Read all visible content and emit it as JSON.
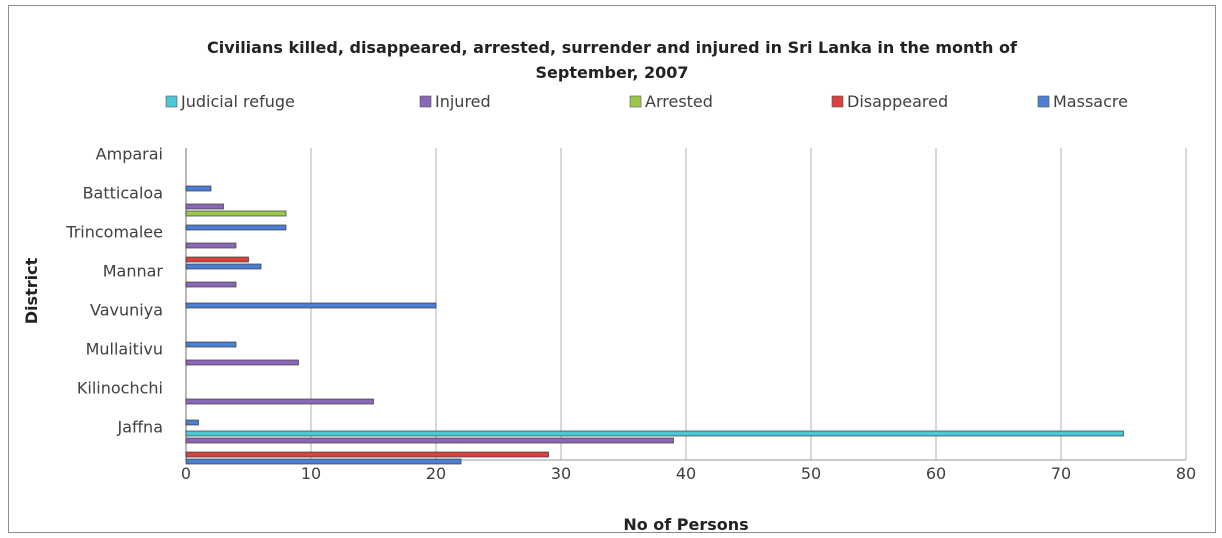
{
  "chart_data": {
    "type": "bar",
    "orientation": "horizontal",
    "title": "Civilians killed, disappeared, arrested, surrender and injured in  Sri Lanka in the month of September, 2007",
    "title_lines": [
      "Civilians killed, disappeared, arrested, surrender and injured in  Sri Lanka in the month of",
      "September, 2007"
    ],
    "xlabel": "No of Persons",
    "ylabel": "District",
    "xlim": [
      0,
      80
    ],
    "x_ticks": [
      "0",
      "10",
      "20",
      "30",
      "40",
      "50",
      "60",
      "70",
      "80"
    ],
    "grid": "vertical",
    "legend_position": "top",
    "categories": [
      "Amparai",
      "Batticaloa",
      "Trincomalee",
      "Mannar",
      "Vavuniya",
      "Mullaitivu",
      "Kilinochchi",
      "Jaffna"
    ],
    "legend": [
      {
        "name": "Judicial refuge",
        "color": "#4bc7d6"
      },
      {
        "name": "Injured",
        "color": "#8a68b8"
      },
      {
        "name": "Arrested",
        "color": "#9bc84c"
      },
      {
        "name": "Disappeared",
        "color": "#d9413f"
      },
      {
        "name": "Massacre",
        "color": "#4a7fd4"
      }
    ],
    "series": [
      {
        "name": "Massacre",
        "color": "#4a7fd4",
        "values": [
          2,
          8,
          6,
          20,
          4,
          0,
          1,
          22
        ]
      },
      {
        "name": "Disappeared",
        "color": "#d9413f",
        "values": [
          0,
          0,
          5,
          0,
          0,
          0,
          0,
          29
        ]
      },
      {
        "name": "Arrested",
        "color": "#9bc84c",
        "values": [
          0,
          8,
          0,
          0,
          0,
          0,
          0,
          0
        ]
      },
      {
        "name": "Injured",
        "color": "#8a68b8",
        "values": [
          0,
          3,
          4,
          4,
          0,
          9,
          15,
          39
        ]
      },
      {
        "name": "Judicial refuge",
        "color": "#4bc7d6",
        "values": [
          0,
          0,
          0,
          0,
          0,
          0,
          0,
          75
        ]
      }
    ]
  }
}
